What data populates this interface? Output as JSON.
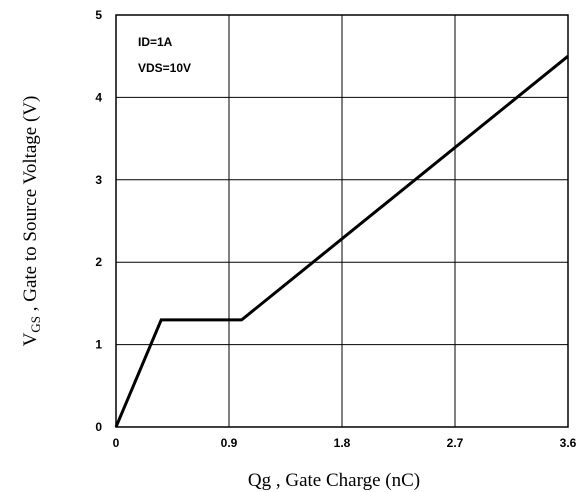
{
  "chart_data": {
    "type": "line",
    "title": "",
    "xlabel": "Qg , Gate Charge (nC)",
    "ylabel": {
      "main": "V",
      "subscript": "GS",
      "rest": " , Gate to Source Voltage (V)"
    },
    "xlim": [
      0,
      3.6
    ],
    "ylim": [
      0,
      5
    ],
    "xticks": [
      "0",
      "0.9",
      "1.8",
      "2.7",
      "3.6"
    ],
    "yticks": [
      "0",
      "1",
      "2",
      "3",
      "4",
      "5"
    ],
    "grid": true,
    "annotations": [
      "ID=1A",
      "VDS=10V"
    ],
    "series": [
      {
        "x": [
          0,
          0.36,
          1.0,
          3.6
        ],
        "y": [
          0,
          1.3,
          1.3,
          4.5
        ]
      }
    ],
    "colors": {
      "line": "#000000",
      "grid": "#000000",
      "frame": "#000000"
    }
  }
}
